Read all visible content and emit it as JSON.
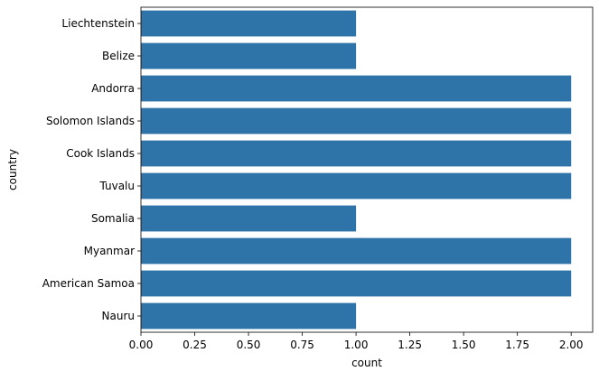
{
  "chart_data": {
    "type": "bar",
    "orientation": "horizontal",
    "categories": [
      "Liechtenstein",
      "Belize",
      "Andorra",
      "Solomon Islands",
      "Cook Islands",
      "Tuvalu",
      "Somalia",
      "Myanmar",
      "American Samoa",
      "Nauru"
    ],
    "values": [
      1,
      1,
      2,
      2,
      2,
      2,
      1,
      2,
      2,
      1
    ],
    "xlabel": "count",
    "ylabel": "country",
    "xlim": [
      0,
      2.1
    ],
    "xticks": [
      "0.00",
      "0.25",
      "0.50",
      "0.75",
      "1.00",
      "1.25",
      "1.50",
      "1.75",
      "2.00"
    ],
    "grid": false,
    "bar_color": "#2f74a8"
  }
}
